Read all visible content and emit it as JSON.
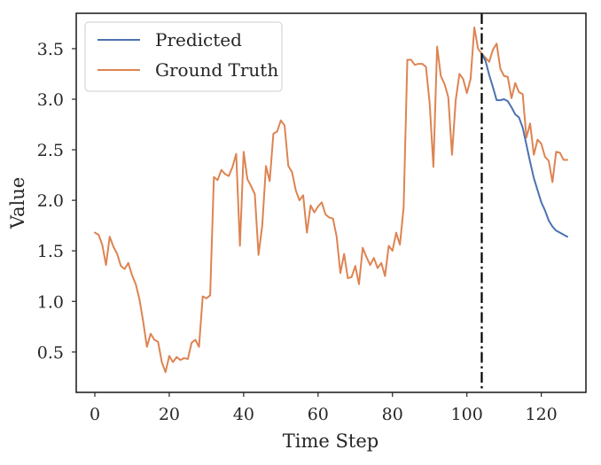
{
  "chart_data": {
    "type": "line",
    "title": "",
    "xlabel": "Time Step",
    "ylabel": "Value",
    "xlim": [
      -5,
      132
    ],
    "ylim": [
      0.1,
      3.85
    ],
    "xticks": [
      0,
      20,
      40,
      60,
      80,
      100,
      120
    ],
    "yticks": [
      0.5,
      1.0,
      1.5,
      2.0,
      2.5,
      3.0,
      3.5
    ],
    "xtick_labels": [
      "0",
      "20",
      "40",
      "60",
      "80",
      "100",
      "120"
    ],
    "ytick_labels": [
      "0.5",
      "1.0",
      "1.5",
      "2.0",
      "2.5",
      "3.0",
      "3.5"
    ],
    "grid": false,
    "legend_position": "top-left",
    "vline": {
      "x": 104,
      "style": "dash-dot",
      "color": "#000000"
    },
    "series": [
      {
        "name": "Predicted",
        "color": "#4c72b0",
        "x": [
          104,
          105,
          106,
          107,
          108,
          109,
          110,
          111,
          112,
          113,
          114,
          115,
          116,
          117,
          118,
          119,
          120,
          121,
          122,
          123,
          124,
          125,
          126,
          127
        ],
        "values": [
          3.45,
          3.38,
          3.24,
          3.12,
          2.99,
          2.99,
          3.0,
          2.98,
          2.92,
          2.85,
          2.82,
          2.72,
          2.55,
          2.38,
          2.22,
          2.1,
          1.98,
          1.9,
          1.8,
          1.74,
          1.7,
          1.68,
          1.66,
          1.64
        ]
      },
      {
        "name": "Ground Truth",
        "color": "#dd8452",
        "x": [
          0,
          1,
          2,
          3,
          4,
          5,
          6,
          7,
          8,
          9,
          10,
          11,
          12,
          13,
          14,
          15,
          16,
          17,
          18,
          19,
          20,
          21,
          22,
          23,
          24,
          25,
          26,
          27,
          28,
          29,
          30,
          31,
          32,
          33,
          34,
          35,
          36,
          37,
          38,
          39,
          40,
          41,
          42,
          43,
          44,
          45,
          46,
          47,
          48,
          49,
          50,
          51,
          52,
          53,
          54,
          55,
          56,
          57,
          58,
          59,
          60,
          61,
          62,
          63,
          64,
          65,
          66,
          67,
          68,
          69,
          70,
          71,
          72,
          73,
          74,
          75,
          76,
          77,
          78,
          79,
          80,
          81,
          82,
          83,
          84,
          85,
          86,
          87,
          88,
          89,
          90,
          91,
          92,
          93,
          94,
          95,
          96,
          97,
          98,
          99,
          100,
          101,
          102,
          103,
          104,
          105,
          106,
          107,
          108,
          109,
          110,
          111,
          112,
          113,
          114,
          115,
          116,
          117,
          118,
          119,
          120,
          121,
          122,
          123,
          124,
          125,
          126,
          127
        ],
        "values": [
          1.68,
          1.66,
          1.56,
          1.36,
          1.64,
          1.54,
          1.47,
          1.35,
          1.32,
          1.38,
          1.26,
          1.17,
          1.02,
          0.8,
          0.55,
          0.68,
          0.62,
          0.6,
          0.4,
          0.3,
          0.46,
          0.4,
          0.45,
          0.42,
          0.44,
          0.43,
          0.59,
          0.62,
          0.55,
          1.05,
          1.03,
          1.06,
          2.23,
          2.2,
          2.3,
          2.26,
          2.24,
          2.33,
          2.46,
          1.55,
          2.48,
          2.21,
          2.14,
          2.06,
          1.46,
          1.75,
          2.34,
          2.19,
          2.66,
          2.68,
          2.79,
          2.74,
          2.34,
          2.28,
          2.1,
          2.0,
          2.05,
          1.68,
          1.95,
          1.88,
          1.94,
          1.98,
          1.86,
          1.83,
          1.82,
          1.64,
          1.28,
          1.47,
          1.23,
          1.24,
          1.35,
          1.17,
          1.53,
          1.44,
          1.36,
          1.43,
          1.33,
          1.38,
          1.25,
          1.55,
          1.5,
          1.68,
          1.56,
          1.93,
          3.39,
          3.39,
          3.34,
          3.35,
          3.35,
          3.32,
          2.96,
          2.33,
          3.52,
          3.23,
          3.15,
          3.02,
          2.45,
          2.99,
          3.25,
          3.2,
          3.06,
          3.2,
          3.71,
          3.5,
          3.45,
          3.41,
          3.37,
          3.49,
          3.55,
          3.3,
          3.23,
          3.22,
          3.01,
          3.16,
          3.07,
          3.05,
          2.62,
          2.76,
          2.45,
          2.6,
          2.56,
          2.43,
          2.39,
          2.18,
          2.48,
          2.47,
          2.4,
          2.4
        ]
      }
    ]
  }
}
